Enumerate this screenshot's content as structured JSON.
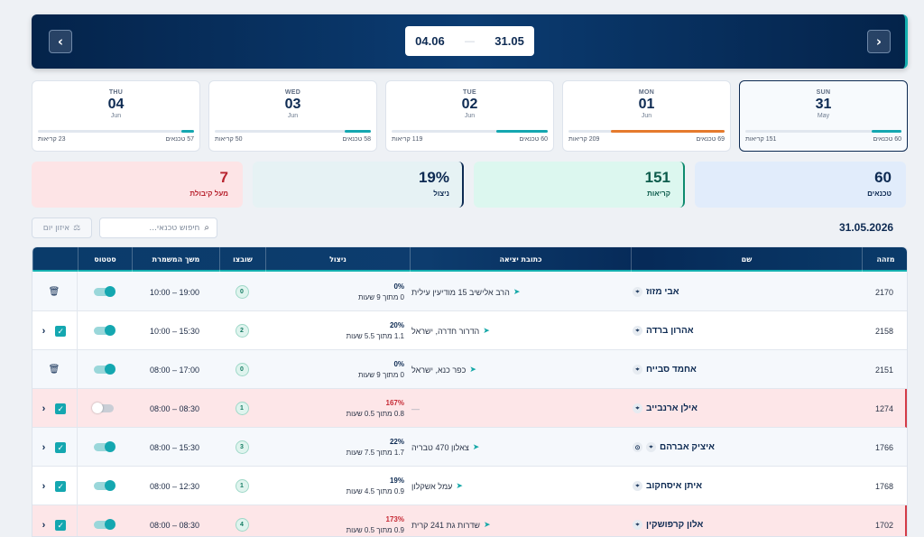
{
  "header": {
    "range_start": "04.06",
    "range_end": "31.05",
    "range_sep": "—",
    "prev_icon": "‹",
    "next_icon": "›"
  },
  "days": [
    {
      "name": "THU",
      "num": "04",
      "month": "Jun",
      "calls": "23 קריאות",
      "techs": "57 טכנאים",
      "fill": 0.08,
      "color": "#14a7b0"
    },
    {
      "name": "WED",
      "num": "03",
      "month": "Jun",
      "calls": "50 קריאות",
      "techs": "58 טכנאים",
      "fill": 0.17,
      "color": "#14a7b0"
    },
    {
      "name": "TUE",
      "num": "02",
      "month": "Jun",
      "calls": "119 קריאות",
      "techs": "60 טכנאים",
      "fill": 0.33,
      "color": "#14a7b0"
    },
    {
      "name": "MON",
      "num": "01",
      "month": "Jun",
      "calls": "209 קריאות",
      "techs": "69 טכנאים",
      "fill": 0.73,
      "color": "#e57a2d"
    },
    {
      "name": "SUN",
      "num": "31",
      "month": "May",
      "calls": "151 קריאות",
      "techs": "60 טכנאים",
      "fill": 0.19,
      "color": "#14a7b0"
    }
  ],
  "stats": [
    {
      "value": "7",
      "label": "מעל קיבולת",
      "bg": "#fde4e6",
      "color": "#b8232f",
      "border": "#fde4e6"
    },
    {
      "value": "19%",
      "label": "ניצול",
      "bg": "#e6f2f4",
      "color": "#0d2a52",
      "border": "#0d2a52"
    },
    {
      "value": "151",
      "label": "קריאות",
      "bg": "#dcf7ef",
      "color": "#0d5c4c",
      "border": "#0e8a6e"
    },
    {
      "value": "60",
      "label": "טכנאים",
      "bg": "#e1ecfb",
      "color": "#0d2a52",
      "border": "#e1ecfb"
    }
  ],
  "toolbar": {
    "search_placeholder": "חיפוש טכנאי...",
    "balance_label": "איזון יום",
    "date": "31.05.2026"
  },
  "columns": {
    "id": "מזהה",
    "name": "שם",
    "address": "כתובת יציאה",
    "util": "ניצול",
    "shifts": "שובצו",
    "duration": "משך המשמרת",
    "status": "סטטוס"
  },
  "rows": [
    {
      "id": "2170",
      "name": "אבי מזוז",
      "address": "הרב אלישיב 15 מודיעין עילית",
      "pct": "0%",
      "sub": "0 מתוך 9 שעות",
      "shifts": "0",
      "dur": "10:00 – 19:00",
      "on": true,
      "type": "trash",
      "style": "alt",
      "extra": false
    },
    {
      "id": "2158",
      "name": "אהרון ברדה",
      "address": "הדרור חדרה, ישראל",
      "pct": "20%",
      "sub": "1.1 מתוך 5.5 שעות",
      "shifts": "2",
      "dur": "10:00 – 15:30",
      "on": true,
      "type": "check",
      "style": "",
      "extra": false
    },
    {
      "id": "2151",
      "name": "אחמד סבייח",
      "address": "כפר כנא, ישראל",
      "pct": "0%",
      "sub": "0 מתוך 9 שעות",
      "shifts": "0",
      "dur": "08:00 – 17:00",
      "on": true,
      "type": "trash",
      "style": "alt",
      "extra": false
    },
    {
      "id": "1274",
      "name": "אילן ארנבייב",
      "address": "—",
      "pct": "167%",
      "sub": "0.8 מתוך 0.5 שעות",
      "shifts": "1",
      "dur": "08:00 – 08:30",
      "on": false,
      "type": "check",
      "style": "red",
      "extra": false
    },
    {
      "id": "1766",
      "name": "איציק אברהם",
      "address": "צאלון 470 טבריה",
      "pct": "22%",
      "sub": "1.7 מתוך 7.5 שעות",
      "shifts": "3",
      "dur": "08:00 – 15:30",
      "on": true,
      "type": "check",
      "style": "alt",
      "extra": true
    },
    {
      "id": "1768",
      "name": "איתן איסחקוב",
      "address": "עמל אשקלון",
      "pct": "19%",
      "sub": "0.9 מתוך 4.5 שעות",
      "shifts": "1",
      "dur": "08:00 – 12:30",
      "on": true,
      "type": "check",
      "style": "",
      "extra": false
    },
    {
      "id": "1702",
      "name": "אלון קרפושקין",
      "address": "שדרות גת 241 קרית",
      "pct": "173%",
      "sub": "0.9 מתוך 0.5 שעות",
      "shifts": "4",
      "dur": "08:00 – 08:30",
      "on": true,
      "type": "check",
      "style": "red",
      "extra": false
    }
  ]
}
